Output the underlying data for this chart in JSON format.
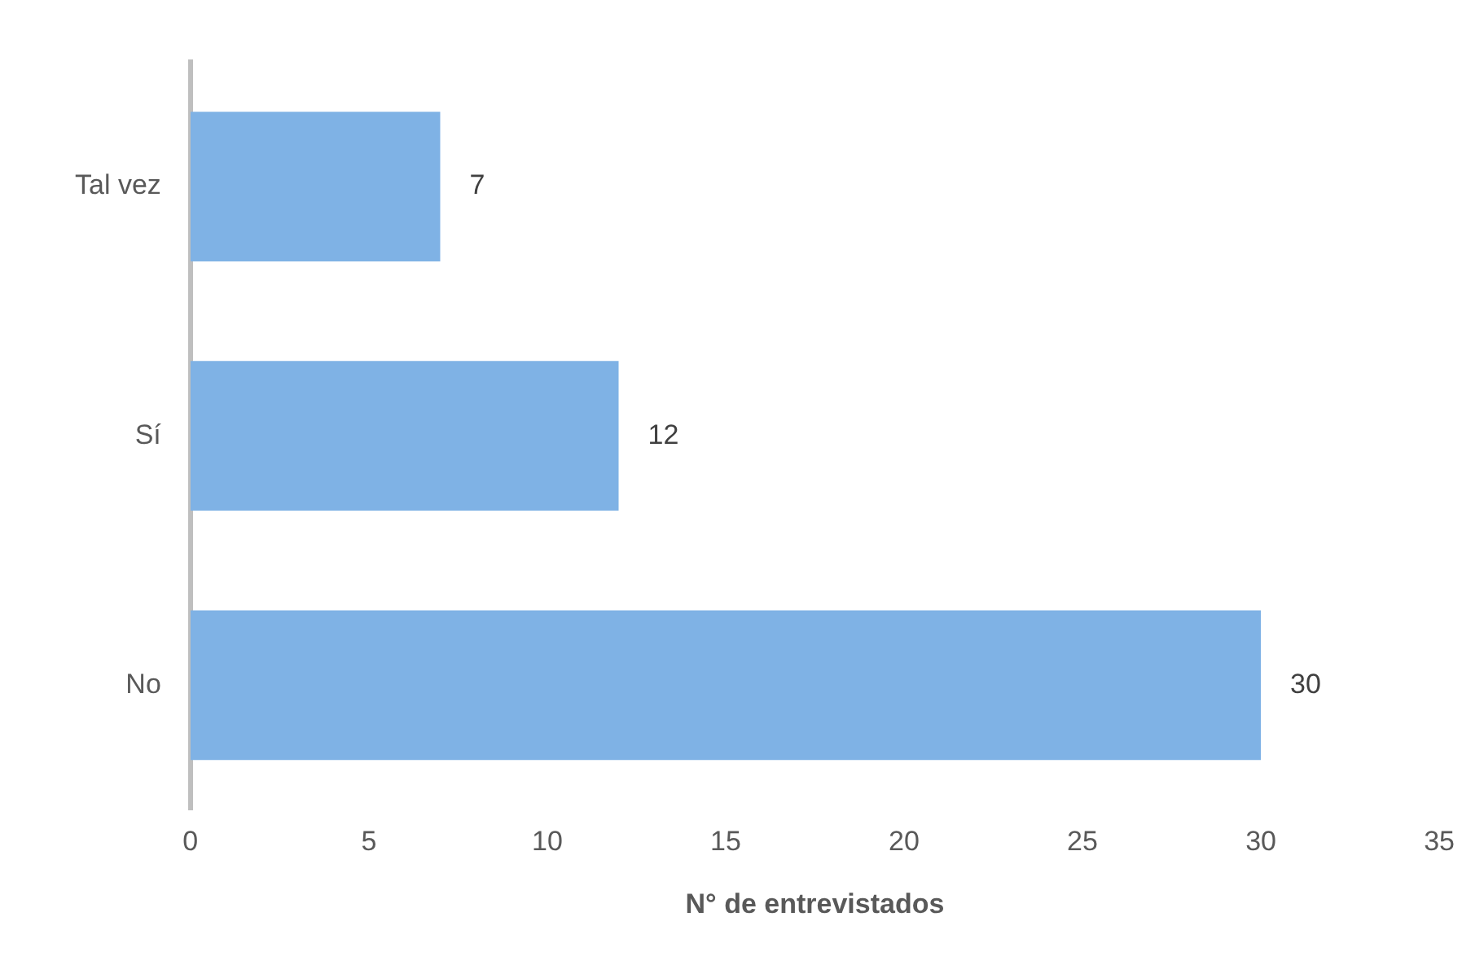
{
  "chart_data": {
    "type": "bar",
    "orientation": "horizontal",
    "xlabel": "N° de entrevistados",
    "categories": [
      "Tal vez",
      "Sí",
      "No"
    ],
    "values": [
      7,
      12,
      30
    ],
    "color": "#7fb2e5",
    "xlim": [
      0,
      35
    ],
    "xticks": [
      0,
      5,
      10,
      15,
      20,
      25,
      30,
      35
    ],
    "grid": false,
    "legend": false,
    "data_labels": true
  }
}
